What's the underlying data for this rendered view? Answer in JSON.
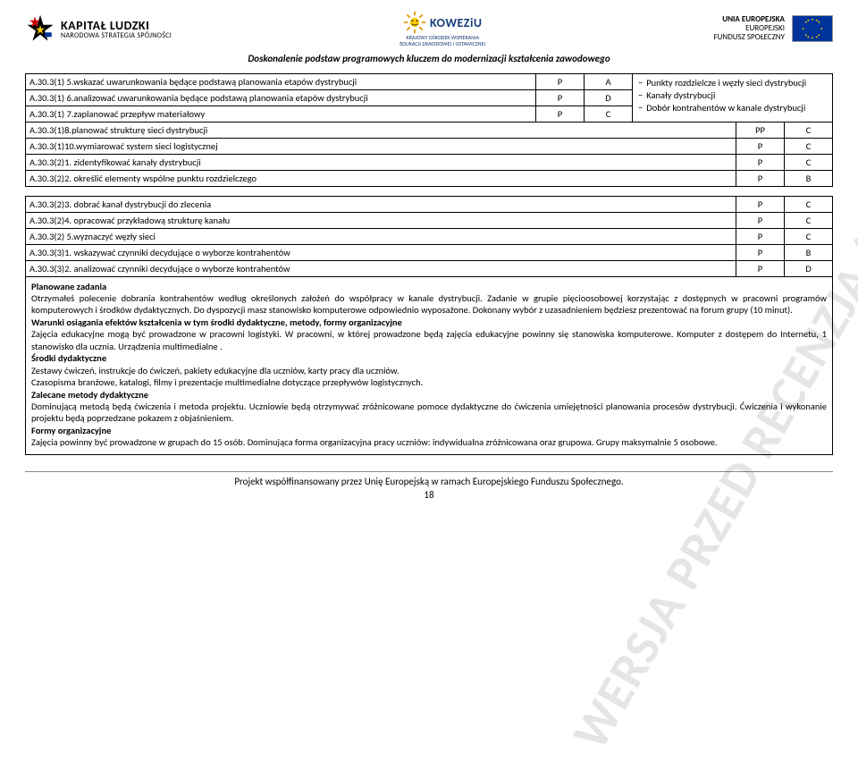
{
  "header": {
    "kapital_ludzki": "KAPITAŁ LUDZKI",
    "kapital_sub": "NARODOWA STRATEGIA SPÓJNOŚCI",
    "koweziu": "KOWEZiU",
    "koweziu_sub1": "KRAJOWY OŚRODEK WSPIERANIA",
    "koweziu_sub2": "EDUKACJI ZAWODOWEJ I USTAWICZNEJ",
    "ue_line1": "UNIA EUROPEJSKA",
    "ue_line2": "EUROPEJSKI",
    "ue_line3": "FUNDUSZ SPOŁECZNY",
    "motto": "Doskonalenie podstaw programowych kluczem do modernizacji kształcenia zawodowego"
  },
  "side_points": [
    "Punkty rozdzielcze i węzły sieci dystrybucji",
    "Kanały dystrybucji",
    "Dobór kontrahentów w kanale dystrybucji"
  ],
  "tables": {
    "t1": [
      [
        "A.30.3(1) 5.wskazać uwarunkowania będące podstawą planowania etapów dystrybucji",
        "P",
        "A"
      ],
      [
        "A.30.3(1) 6.analizować uwarunkowania będące podstawą planowania etapów dystrybucji",
        "P",
        "D"
      ],
      [
        "A.30.3(1) 7.zaplanować przepływ materiałowy",
        "P",
        "C"
      ]
    ],
    "t2": [
      [
        "A.30.3(1)8.planować strukturę sieci dystrybucji",
        "PP",
        "C"
      ]
    ],
    "t3": [
      [
        "A.30.3(1)10.wymiarować system sieci logistycznej",
        "P",
        "C"
      ]
    ],
    "t4": [
      [
        "A.30.3(2)1. zidentyfikować kanały dystrybucji",
        "P",
        "C"
      ]
    ],
    "t5": [
      [
        "A.30.3(2)2. określić elementy wspólne punktu rozdzielczego",
        "P",
        "B"
      ]
    ],
    "t6": [
      [
        "A.30.3(2)3. dobrać kanał dystrybucji do zlecenia",
        "P",
        "C"
      ],
      [
        "A.30.3(2)4. opracować przykładową strukturę kanału",
        "P",
        "C"
      ]
    ],
    "t7": [
      [
        "A.30.3(2) 5.wyznaczyć węzły sieci",
        "P",
        "C"
      ]
    ],
    "t8": [
      [
        "A.30.3(3)1. wskazywać czynniki decydujące o wyborze kontrahentów",
        "P",
        "B"
      ]
    ],
    "t9": [
      [
        "A.30.3(3)2. analizować czynniki decydujące o wyborze kontrahentów",
        "P",
        "D"
      ]
    ]
  },
  "plan": {
    "h1": "Planowane zadania",
    "p1": "Otrzymałeś polecenie dobrania kontrahentów według określonych założeń do współpracy w kanale dystrybucji. Zadanie w grupie pięcioosobowej korzystając z dostępnych w pracowni programów komputerowych i środków dydaktycznych. Do dyspozycji masz stanowisko komputerowe odpowiednio wyposażone. Dokonany wybór z uzasadnieniem będziesz prezentować na forum grupy (10 minut).",
    "h2": "Warunki osiągania efektów kształcenia w tym środki dydaktyczne, metody, formy organizacyjne",
    "p2a": "Zajęcia edukacyjne mogą być prowadzone w pracowni logistyki. W pracowni, w której prowadzone będą zajęcia edukacyjne powinny się stanowiska komputerowe. Komputer z dostępem do Internetu, 1 stanowisko dla ucznia. Urządzenia multimedialne .",
    "h3": "Środki dydaktyczne",
    "p3a": "Zestawy ćwiczeń, instrukcje do ćwiczeń, pakiety edukacyjne dla uczniów,  karty pracy dla uczniów.",
    "p3b": "Czasopisma branżowe, katalogi, filmy i prezentacje multimedialne dotyczące przepływów logistycznych.",
    "h4": "Zalecane metody dydaktyczne",
    "p4a": "Dominującą metodą będą ćwiczenia i metoda projektu. Uczniowie będą otrzymywać zróżnicowane pomoce dydaktyczne do ćwiczenia umiejętności planowania procesów dystrybucji. Ćwiczenia i wykonanie projektu będą poprzedzane pokazem z objaśnieniem.",
    "h5": "Formy organizacyjne",
    "p5": "Zajęcia powinny być prowadzone w grupach do 15 osób. Dominująca forma organizacyjna pracy uczniów: indywidualna zróżnicowana oraz grupowa. Grupy maksymalnie 5 osobowe."
  },
  "footer": {
    "line": "Projekt współfinansowany przez Unię Europejską w ramach Europejskiego Funduszu Społecznego.",
    "page": "18"
  },
  "watermark": "WERSJA PRZED RECENZJĄ (WERSJA ROBOCZA)"
}
